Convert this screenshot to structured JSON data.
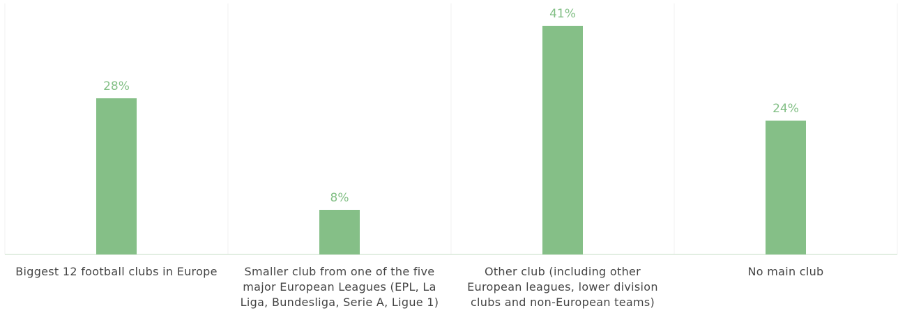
{
  "chart_data": {
    "type": "bar",
    "categories": [
      "Biggest 12 football clubs in Europe",
      "Smaller club from one of the five major European Leagues (EPL, La Liga, Bundesliga, Serie A, Ligue 1)",
      "Other club (including other European leagues, lower division clubs and non-European teams)",
      "No main club"
    ],
    "values": [
      28,
      8,
      41,
      24
    ],
    "value_labels": [
      "28%",
      "8%",
      "41%",
      "24%"
    ],
    "color": "#85bf87"
  }
}
